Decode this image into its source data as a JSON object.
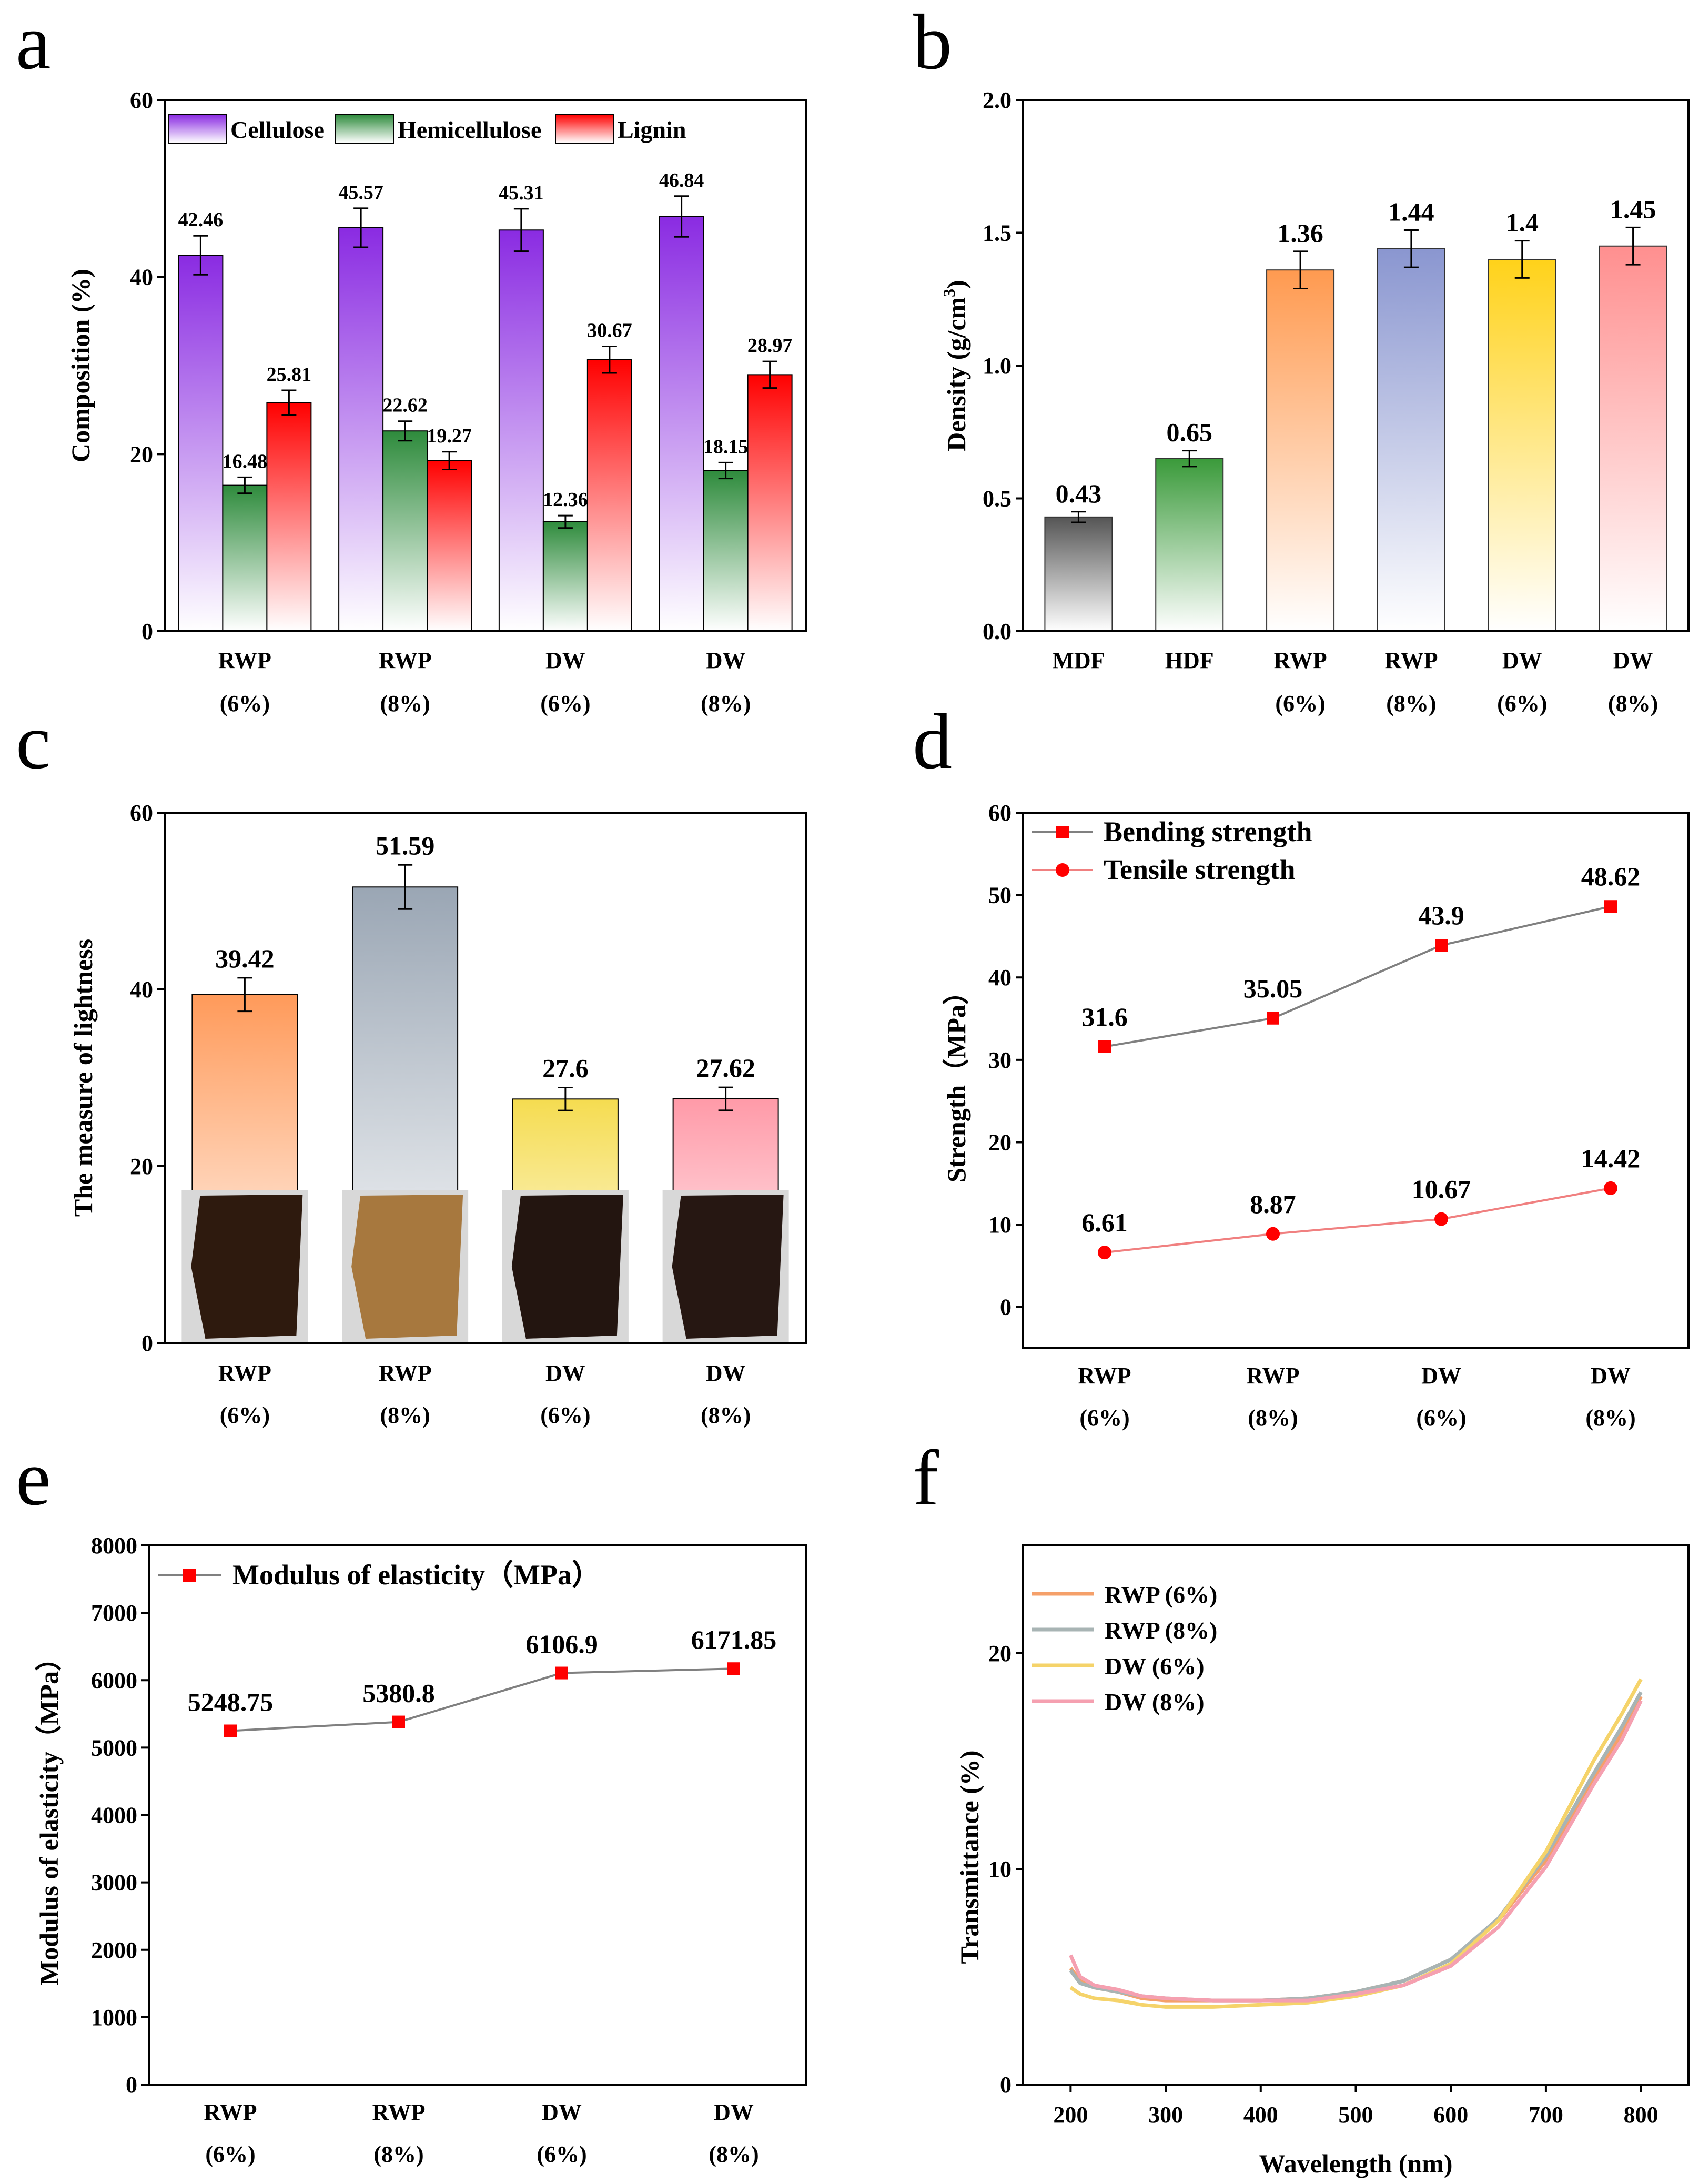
{
  "panels": {
    "a": "a",
    "b": "b",
    "c": "c",
    "d": "d",
    "e": "e",
    "f": "f"
  },
  "chart_data": [
    {
      "panel": "a",
      "type": "bar",
      "ylabel": "Composition (%)",
      "ylim": [
        0,
        60
      ],
      "yticks": [
        0,
        20,
        40,
        60
      ],
      "categories": [
        [
          "RWP",
          "(6%)"
        ],
        [
          "RWP",
          "(8%)"
        ],
        [
          "DW",
          "(6%)"
        ],
        [
          "DW",
          "(8%)"
        ]
      ],
      "series": [
        {
          "name": "Cellulose",
          "color": "#8a2be2",
          "values": [
            42.46,
            45.57,
            45.31,
            46.84
          ],
          "errors": [
            2.2,
            2.2,
            2.4,
            2.3
          ]
        },
        {
          "name": "Hemicellulose",
          "color": "#2e8b3c",
          "values": [
            16.48,
            22.62,
            12.36,
            18.15
          ],
          "errors": [
            0.9,
            1.1,
            0.7,
            0.9
          ]
        },
        {
          "name": "Lignin",
          "color": "#ff0000",
          "values": [
            25.81,
            19.27,
            30.67,
            28.97
          ],
          "errors": [
            1.4,
            1.0,
            1.5,
            1.5
          ]
        }
      ],
      "legend_position": "top-left"
    },
    {
      "panel": "b",
      "type": "bar",
      "ylabel": "Density (g/cm",
      "ylabel_sup": "3",
      "ylabel_end": ")",
      "ylim": [
        0,
        2.0
      ],
      "yticks": [
        "0.0",
        "0.5",
        "1.0",
        "1.5",
        "2.0"
      ],
      "categories": [
        [
          "MDF"
        ],
        [
          "HDF"
        ],
        [
          "RWP",
          "(6%)"
        ],
        [
          "RWP",
          "(8%)"
        ],
        [
          "DW",
          "(6%)"
        ],
        [
          "DW",
          "(8%)"
        ]
      ],
      "values": [
        0.43,
        0.65,
        1.36,
        1.44,
        1.4,
        1.45
      ],
      "labels": [
        "0.43",
        "0.65",
        "1.36",
        "1.44",
        "1.4",
        "1.45"
      ],
      "errors": [
        0.02,
        0.03,
        0.07,
        0.07,
        0.07,
        0.07
      ],
      "colors": [
        "#555555",
        "#3a9a3a",
        "#ff9a50",
        "#8a96d0",
        "#ffd21a",
        "#ff8f8f"
      ]
    },
    {
      "panel": "c",
      "type": "bar",
      "ylabel": "The measure of lightness",
      "ylim": [
        0,
        60
      ],
      "yticks": [
        0,
        20,
        40,
        60
      ],
      "categories": [
        [
          "RWP",
          "(6%)"
        ],
        [
          "RWP",
          "(8%)"
        ],
        [
          "DW",
          "(6%)"
        ],
        [
          "DW",
          "(8%)"
        ]
      ],
      "values": [
        39.42,
        51.59,
        27.6,
        27.62
      ],
      "labels": [
        "39.42",
        "51.59",
        "27.6",
        "27.62"
      ],
      "errors": [
        1.9,
        2.5,
        1.3,
        1.3
      ],
      "colors": [
        "#ff9a5a",
        "#9aa6b4",
        "#f5dc50",
        "#ff9aa8"
      ],
      "photo_tones": [
        "#2e1a0e",
        "#a7783e",
        "#231510",
        "#261712"
      ]
    },
    {
      "panel": "d",
      "type": "line",
      "ylabel": "Strength（MPa）",
      "ylim": [
        -5,
        60
      ],
      "yticks": [
        0,
        10,
        20,
        30,
        40,
        50,
        60
      ],
      "categories": [
        [
          "RWP",
          "(6%)"
        ],
        [
          "RWP",
          "(8%)"
        ],
        [
          "DW",
          "(6%)"
        ],
        [
          "DW",
          "(8%)"
        ]
      ],
      "series": [
        {
          "name": "Bending strength",
          "marker": "square",
          "line_color": "#808080",
          "marker_color": "#ff0000",
          "values": [
            31.6,
            35.05,
            43.9,
            48.62
          ],
          "labels": [
            "31.6",
            "35.05",
            "43.9",
            "48.62"
          ]
        },
        {
          "name": "Tensile strength",
          "marker": "circle",
          "line_color": "#f08080",
          "marker_color": "#ff0000",
          "values": [
            6.61,
            8.87,
            10.67,
            14.42
          ],
          "labels": [
            "6.61",
            "8.87",
            "10.67",
            "14.42"
          ]
        }
      ],
      "legend_position": "top-left"
    },
    {
      "panel": "e",
      "type": "line",
      "ylabel": "Modulus of elasticity（MPa）",
      "ylim": [
        0,
        8000
      ],
      "yticks": [
        0,
        1000,
        2000,
        3000,
        4000,
        5000,
        6000,
        7000,
        8000
      ],
      "categories": [
        [
          "RWP",
          "(6%)"
        ],
        [
          "RWP",
          "(8%)"
        ],
        [
          "DW",
          "(6%)"
        ],
        [
          "DW",
          "(8%)"
        ]
      ],
      "series": [
        {
          "name": "Modulus of elasticity（MPa）",
          "marker": "square",
          "line_color": "#808080",
          "marker_color": "#ff0000",
          "values": [
            5248.75,
            5380.8,
            6106.9,
            6171.85
          ],
          "labels": [
            "5248.75",
            "5380.8",
            "6106.9",
            "6171.85"
          ]
        }
      ],
      "legend_position": "top-left"
    },
    {
      "panel": "f",
      "type": "line",
      "xlabel": "Wavelength (nm)",
      "ylabel": "Transmittance (%)",
      "xlim": [
        150,
        850
      ],
      "ylim": [
        0,
        25
      ],
      "xticks": [
        200,
        300,
        400,
        500,
        600,
        700,
        800
      ],
      "yticks": [
        0,
        10,
        20
      ],
      "x": [
        200,
        210,
        225,
        250,
        275,
        300,
        350,
        400,
        450,
        500,
        550,
        600,
        650,
        700,
        750,
        780,
        800
      ],
      "series": [
        {
          "name": "RWP (6%)",
          "color": "#f5a06a",
          "values": [
            5.4,
            4.8,
            4.5,
            4.3,
            4.0,
            3.9,
            3.9,
            3.9,
            4.0,
            4.3,
            4.8,
            5.8,
            7.6,
            10.4,
            14.2,
            16.3,
            18.0
          ]
        },
        {
          "name": "RWP (8%)",
          "color": "#a8b4b4",
          "values": [
            5.3,
            4.7,
            4.5,
            4.3,
            4.1,
            4.0,
            3.9,
            3.9,
            4.0,
            4.3,
            4.8,
            5.8,
            7.7,
            10.6,
            14.4,
            16.6,
            18.2
          ]
        },
        {
          "name": "DW (6%)",
          "color": "#f5d36a",
          "values": [
            4.5,
            4.2,
            4.0,
            3.9,
            3.7,
            3.6,
            3.6,
            3.7,
            3.8,
            4.1,
            4.6,
            5.6,
            7.6,
            10.8,
            15.0,
            17.2,
            18.8
          ]
        },
        {
          "name": "DW (8%)",
          "color": "#f5a0b0",
          "values": [
            6.0,
            5.0,
            4.6,
            4.4,
            4.1,
            4.0,
            3.9,
            3.9,
            3.9,
            4.2,
            4.6,
            5.5,
            7.3,
            10.1,
            13.9,
            16.0,
            17.8
          ]
        }
      ],
      "legend_position": "top-left"
    }
  ]
}
